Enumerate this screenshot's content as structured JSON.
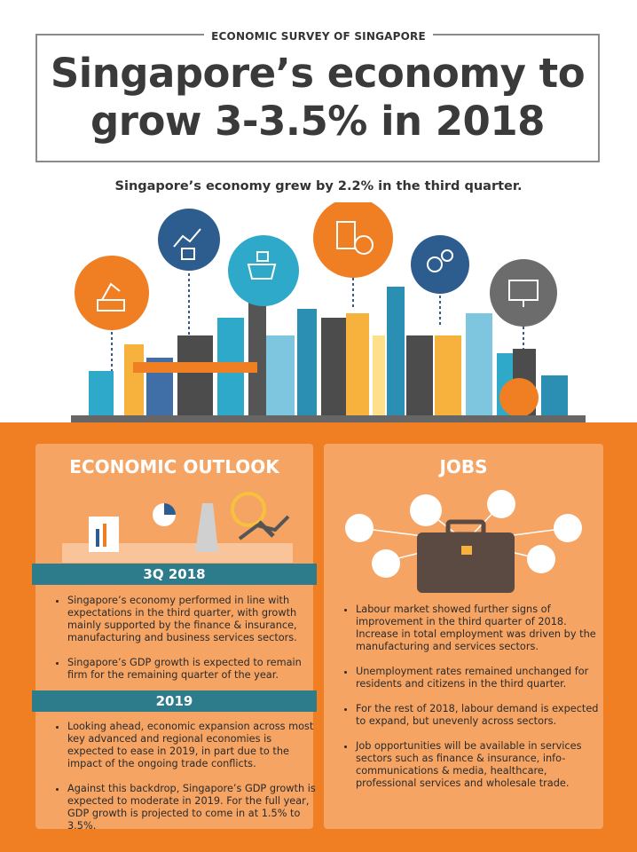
{
  "header": {
    "label": "ECONOMIC SURVEY OF SINGAPORE",
    "title_lines": [
      "Singapore’s economy to",
      "grow 3-3.5% in 2018"
    ],
    "subtitle": "Singapore’s economy grew by 2.2% in the third quarter."
  },
  "outlook": {
    "title": "ECONOMIC OUTLOOK",
    "sections": [
      {
        "heading": "3Q 2018",
        "bullets": [
          "Singapore’s economy performed in line with expectations in the third quarter, with growth mainly supported by the finance & insurance, manufacturing and business services sectors.",
          "Singapore’s GDP growth is expected to remain firm for the remaining quarter of the year."
        ]
      },
      {
        "heading": "2019",
        "bullets": [
          "Looking ahead, economic expansion across most key advanced and regional economies is expected to ease in 2019, in part due to the impact of the ongoing trade conflicts.",
          "Against this backdrop, Singapore’s GDP growth is expected to moderate in 2019. For the full year, GDP growth is projected to come in at 1.5% to 3.5%."
        ]
      }
    ]
  },
  "jobs": {
    "title": "JOBS",
    "bullets": [
      "Labour market showed further signs of improvement in the third quarter of 2018. Increase in total employment was driven by the manufacturing and services sectors.",
      "Unemployment rates remained unchanged for residents and citizens in the third quarter.",
      "For the rest of 2018, labour demand is expected to expand, but unevenly across sectors.",
      "Job opportunities will be available in services sectors such as finance & insurance, info-communications & media, healthcare, professional services and wholesale trade."
    ]
  }
}
